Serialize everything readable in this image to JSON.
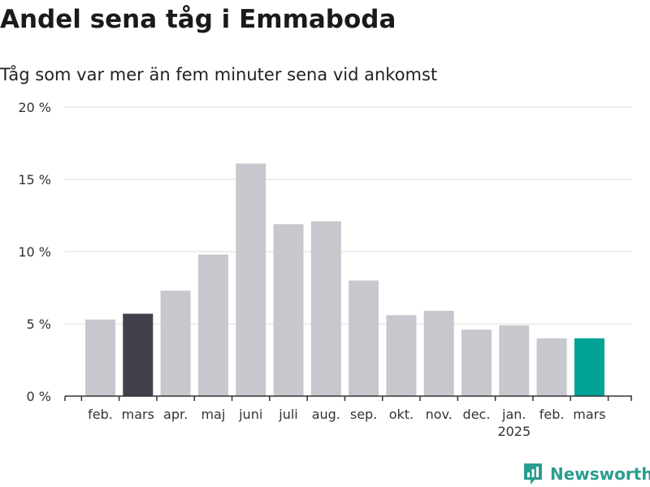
{
  "title": "Andel sena tåg i Emmaboda",
  "subtitle": "Tåg som var mer än fem minuter sena vid ankomst",
  "brand": "Newsworthy",
  "colors": {
    "bar": "#c8c7cd",
    "highlight_start": "#403f4a",
    "highlight_end": "#00a396",
    "grid": "#dddddd",
    "axis": "#333333",
    "brand": "#2a9d8f"
  },
  "chart_data": {
    "type": "bar",
    "categories": [
      "feb.",
      "mars",
      "apr.",
      "maj",
      "juni",
      "juli",
      "aug.",
      "sep.",
      "okt.",
      "nov.",
      "dec.",
      "jan.",
      "feb.",
      "mars"
    ],
    "year_label": {
      "category_index": 11,
      "text": "2025"
    },
    "values": [
      5.3,
      5.7,
      7.3,
      9.8,
      16.1,
      11.9,
      12.1,
      8.0,
      5.6,
      5.9,
      4.6,
      4.9,
      4.0,
      4.0
    ],
    "highlight": {
      "1": "highlight_start",
      "13": "highlight_end"
    },
    "ylim": [
      0,
      20
    ],
    "yticks": [
      0,
      5,
      10,
      15,
      20
    ],
    "ytick_labels": [
      "0 %",
      "5 %",
      "10 %",
      "15 %",
      "20 %"
    ],
    "grid": true,
    "xlabel": "",
    "ylabel": ""
  }
}
